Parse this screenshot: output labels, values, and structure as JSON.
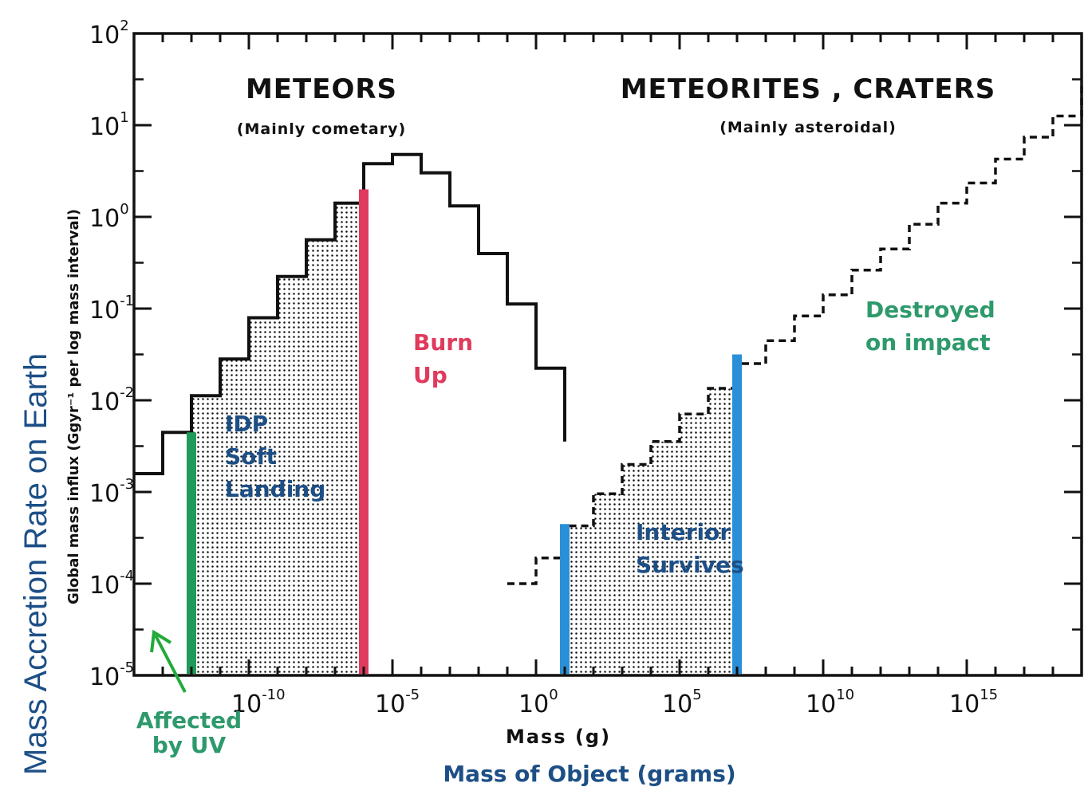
{
  "colors": {
    "ink": "#111111",
    "green": "#1f9a5a",
    "red": "#e03a5c",
    "blue": "#2a8fd6",
    "navy": "#1d4f86",
    "teal": "#2e9a6c"
  },
  "axis": {
    "y_main_label": "Mass Accretion Rate on Earth",
    "y_orig_label": "Global mass influx (Ggyr⁻¹ per log mass interval)",
    "x_orig_label": "Mass (g)",
    "x_main_label": "Mass of Object (grams)",
    "y_ticks": [
      {
        "base": "10",
        "exp": "2"
      },
      {
        "base": "10",
        "exp": "1"
      },
      {
        "base": "10",
        "exp": "0"
      },
      {
        "base": "10",
        "exp": "-1"
      },
      {
        "base": "10",
        "exp": "-2"
      },
      {
        "base": "10",
        "exp": "-3"
      },
      {
        "base": "10",
        "exp": "-4"
      },
      {
        "base": "10",
        "exp": "-5"
      }
    ],
    "x_ticks": [
      {
        "base": "10",
        "exp": "-10"
      },
      {
        "base": "10",
        "exp": "-5"
      },
      {
        "base": "10",
        "exp": "0"
      },
      {
        "base": "10",
        "exp": "5"
      },
      {
        "base": "10",
        "exp": "10"
      },
      {
        "base": "10",
        "exp": "15"
      }
    ]
  },
  "headers": {
    "meteors": "METEORS",
    "meteors_sub": "(Mainly cometary)",
    "meteorites": "METEORITES , CRATERS",
    "meteorites_sub": "(Mainly asteroidal)"
  },
  "annotations": {
    "idp": [
      "IDP",
      "Soft",
      "Landing"
    ],
    "burn": [
      "Burn",
      "Up"
    ],
    "interior": [
      "Interior",
      "Survives"
    ],
    "destroyed": [
      "Destroyed",
      "on impact"
    ],
    "uv": [
      "Affected",
      "by UV"
    ]
  },
  "chart_data": {
    "type": "area",
    "x_scale": "log",
    "y_scale": "log",
    "xlim": [
      -14,
      19
    ],
    "ylim": [
      -5,
      2
    ],
    "solid_step_series": {
      "edges": [
        -14,
        -13,
        -12,
        -11,
        -10,
        -9,
        -8,
        -7,
        -6,
        -5,
        -4,
        -3,
        -2,
        -1,
        0,
        1
      ],
      "values": [
        -2.8,
        -2.35,
        -1.95,
        -1.55,
        -1.1,
        -0.65,
        -0.25,
        0.15,
        0.58,
        0.68,
        0.48,
        0.12,
        -0.4,
        -0.95,
        -1.65,
        -2.45
      ]
    },
    "dashed_step_series": {
      "edges": [
        -1,
        0,
        1,
        2,
        3,
        4,
        5,
        6,
        7,
        8,
        9,
        10,
        11,
        12,
        13,
        14,
        15,
        16,
        17,
        18,
        19
      ],
      "values": [
        -4,
        -3.72,
        -3.37,
        -3.02,
        -2.7,
        -2.45,
        -2.15,
        -1.87,
        -1.6,
        -1.35,
        -1.08,
        -0.85,
        -0.58,
        -0.35,
        -0.08,
        0.15,
        0.37,
        0.63,
        0.87,
        1.1,
        1.45
      ]
    },
    "stippled_regions": [
      [
        -12,
        -6
      ],
      [
        1,
        7
      ]
    ],
    "markers": [
      {
        "name": "Affected by UV",
        "x": -12,
        "top": -2.35,
        "color_key": "green"
      },
      {
        "name": "Burn Up",
        "x": -6,
        "top": 0.3,
        "color_key": "red"
      },
      {
        "name": "Interior Survives",
        "x": 1,
        "top": -3.35,
        "color_key": "blue"
      },
      {
        "name": "Destroyed on impact",
        "x": 7,
        "top": -1.5,
        "color_key": "blue"
      }
    ]
  }
}
